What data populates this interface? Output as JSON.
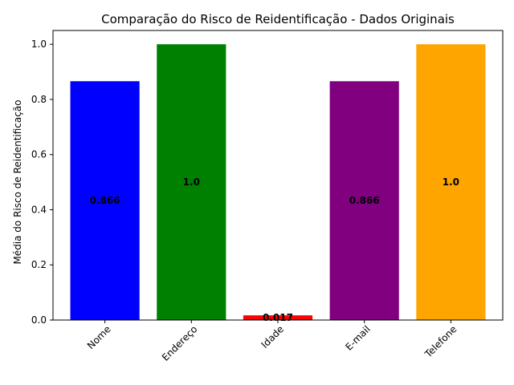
{
  "chart_data": {
    "type": "bar",
    "title": "Comparação do Risco de Reidentificação - Dados Originais",
    "xlabel": "",
    "ylabel": "Média do Risco de Reidentificação",
    "categories": [
      "Nome",
      "Endereço",
      "Idade",
      "E-mail",
      "Telefone"
    ],
    "values": [
      0.866,
      1.0,
      0.017,
      0.866,
      1.0
    ],
    "data_labels": [
      "0.866",
      "1.0",
      "0.017",
      "0.866",
      "1.0"
    ],
    "colors": [
      "#0000ff",
      "#008000",
      "#ff0000",
      "#800080",
      "#ffa500"
    ],
    "ylim": [
      0,
      1.05
    ],
    "yticks": [
      0.0,
      0.2,
      0.4,
      0.6,
      0.8,
      1.0
    ],
    "ytick_labels": [
      "0.0",
      "0.2",
      "0.4",
      "0.6",
      "0.8",
      "1.0"
    ],
    "xtick_rotation_deg": 45,
    "grid": false,
    "legend": "none"
  }
}
